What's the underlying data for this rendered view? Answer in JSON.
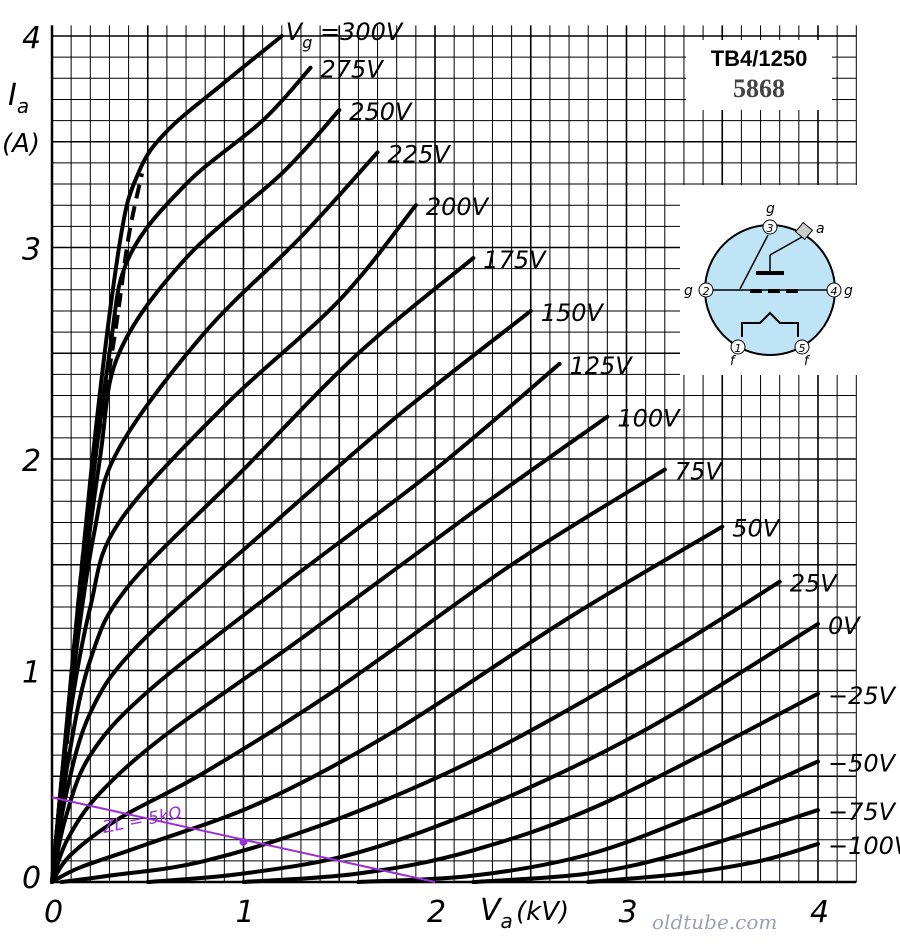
{
  "title": "TB4/1250",
  "subtitle": "5868",
  "watermark": "oldtube.com",
  "load_line_label": "ZL = 5kΩ",
  "pinout": {
    "pins": [
      "1",
      "2",
      "3",
      "4",
      "5"
    ],
    "pin_labels": [
      "f",
      "g",
      "g",
      "a",
      "g",
      "f"
    ]
  },
  "colors": {
    "curve": "#000000",
    "grid": "#000000",
    "load_line": "#9b30d9",
    "envelope_fill": "#bfe4f5"
  },
  "chart_data": {
    "type": "line",
    "title": "TB4/1250",
    "subtitle": "5868",
    "xlabel": "V",
    "xlabel_sub": "a",
    "xlabel_unit": "(kV)",
    "ylabel": "I",
    "ylabel_sub": "a",
    "ylabel_unit": "(A)",
    "xlim": [
      0,
      4.2
    ],
    "ylim": [
      0,
      4.05
    ],
    "xticks": [
      "0",
      "1",
      "2",
      "3",
      "4"
    ],
    "yticks": [
      "0",
      "1",
      "2",
      "3",
      "4"
    ],
    "grid": true,
    "series": [
      {
        "name": "Vg = 300V",
        "label": "300V",
        "points": [
          [
            0,
            0
          ],
          [
            0.2,
            1.9
          ],
          [
            0.35,
            3.0
          ],
          [
            0.45,
            3.35
          ],
          [
            0.6,
            3.55
          ],
          [
            0.9,
            3.78
          ],
          [
            1.2,
            4.0
          ]
        ]
      },
      {
        "name": "275V",
        "label": "275V",
        "points": [
          [
            0,
            0
          ],
          [
            0.15,
            1.4
          ],
          [
            0.3,
            2.5
          ],
          [
            0.4,
            2.95
          ],
          [
            0.7,
            3.3
          ],
          [
            1.1,
            3.6
          ],
          [
            1.35,
            3.85
          ]
        ]
      },
      {
        "name": "250V",
        "label": "250V",
        "points": [
          [
            0,
            0
          ],
          [
            0.12,
            1.1
          ],
          [
            0.25,
            2.0
          ],
          [
            0.35,
            2.5
          ],
          [
            0.7,
            2.95
          ],
          [
            1.2,
            3.35
          ],
          [
            1.5,
            3.65
          ]
        ]
      },
      {
        "name": "225V",
        "label": "225V",
        "points": [
          [
            0,
            0
          ],
          [
            0.1,
            0.9
          ],
          [
            0.22,
            1.65
          ],
          [
            0.35,
            2.05
          ],
          [
            0.8,
            2.6
          ],
          [
            1.3,
            3.05
          ],
          [
            1.7,
            3.45
          ]
        ]
      },
      {
        "name": "200V",
        "label": "200V",
        "points": [
          [
            0,
            0
          ],
          [
            0.08,
            0.7
          ],
          [
            0.2,
            1.3
          ],
          [
            0.35,
            1.7
          ],
          [
            0.9,
            2.25
          ],
          [
            1.5,
            2.75
          ],
          [
            1.9,
            3.2
          ]
        ]
      },
      {
        "name": "175V",
        "label": "175V",
        "points": [
          [
            0,
            0
          ],
          [
            0.08,
            0.55
          ],
          [
            0.2,
            1.05
          ],
          [
            0.4,
            1.4
          ],
          [
            1.0,
            1.95
          ],
          [
            1.6,
            2.5
          ],
          [
            2.2,
            2.95
          ]
        ]
      },
      {
        "name": "150V",
        "label": "150V",
        "points": [
          [
            0,
            0
          ],
          [
            0.07,
            0.4
          ],
          [
            0.2,
            0.8
          ],
          [
            0.45,
            1.12
          ],
          [
            1.1,
            1.65
          ],
          [
            1.8,
            2.2
          ],
          [
            2.5,
            2.7
          ]
        ]
      },
      {
        "name": "125V",
        "label": "125V",
        "points": [
          [
            0,
            0
          ],
          [
            0.07,
            0.3
          ],
          [
            0.2,
            0.6
          ],
          [
            0.5,
            0.9
          ],
          [
            1.2,
            1.4
          ],
          [
            2.0,
            1.95
          ],
          [
            2.65,
            2.45
          ]
        ]
      },
      {
        "name": "100V",
        "label": "100V",
        "points": [
          [
            0,
            0
          ],
          [
            0.08,
            0.2
          ],
          [
            0.25,
            0.42
          ],
          [
            0.6,
            0.7
          ],
          [
            1.3,
            1.15
          ],
          [
            2.2,
            1.75
          ],
          [
            2.9,
            2.2
          ]
        ]
      },
      {
        "name": "75V",
        "label": "75V",
        "points": [
          [
            0,
            0
          ],
          [
            0.1,
            0.13
          ],
          [
            0.35,
            0.3
          ],
          [
            0.8,
            0.52
          ],
          [
            1.5,
            0.92
          ],
          [
            2.4,
            1.5
          ],
          [
            3.2,
            1.95
          ]
        ]
      },
      {
        "name": "50V",
        "label": "50V",
        "points": [
          [
            0,
            0
          ],
          [
            0.15,
            0.07
          ],
          [
            0.5,
            0.18
          ],
          [
            1.1,
            0.38
          ],
          [
            1.8,
            0.72
          ],
          [
            2.7,
            1.25
          ],
          [
            3.5,
            1.68
          ]
        ]
      },
      {
        "name": "25V",
        "label": "25V",
        "points": [
          [
            0.05,
            0
          ],
          [
            0.3,
            0.03
          ],
          [
            0.8,
            0.1
          ],
          [
            1.5,
            0.3
          ],
          [
            2.3,
            0.62
          ],
          [
            3.2,
            1.08
          ],
          [
            3.8,
            1.42
          ]
        ]
      },
      {
        "name": "0V",
        "label": "0V",
        "points": [
          [
            0.5,
            0
          ],
          [
            1.0,
            0.04
          ],
          [
            1.6,
            0.14
          ],
          [
            2.3,
            0.37
          ],
          [
            3.1,
            0.72
          ],
          [
            4.0,
            1.22
          ]
        ]
      },
      {
        "name": "-25V",
        "label": "−25V",
        "points": [
          [
            1.0,
            0
          ],
          [
            1.6,
            0.04
          ],
          [
            2.2,
            0.15
          ],
          [
            2.9,
            0.38
          ],
          [
            4.0,
            0.89
          ]
        ]
      },
      {
        "name": "-50V",
        "label": "−50V",
        "points": [
          [
            1.6,
            0
          ],
          [
            2.2,
            0.03
          ],
          [
            2.8,
            0.13
          ],
          [
            3.4,
            0.33
          ],
          [
            4.0,
            0.57
          ]
        ]
      },
      {
        "name": "-75V",
        "label": "−75V",
        "points": [
          [
            2.2,
            0
          ],
          [
            2.8,
            0.04
          ],
          [
            3.3,
            0.14
          ],
          [
            4.0,
            0.34
          ]
        ]
      },
      {
        "name": "-100V",
        "label": "−100V",
        "points": [
          [
            2.8,
            0
          ],
          [
            3.3,
            0.04
          ],
          [
            3.7,
            0.1
          ],
          [
            4.0,
            0.18
          ]
        ]
      }
    ],
    "envelope": {
      "points": [
        [
          0.07,
          0.55
        ],
        [
          0.12,
          1.15
        ],
        [
          0.2,
          1.85
        ],
        [
          0.33,
          2.6
        ],
        [
          0.4,
          3.05
        ],
        [
          0.47,
          3.35
        ]
      ]
    },
    "load_line": {
      "label": "ZL = 5kΩ",
      "points": [
        [
          0,
          0.4
        ],
        [
          2.0,
          0
        ]
      ],
      "marker": [
        1.0,
        0.19
      ]
    }
  }
}
